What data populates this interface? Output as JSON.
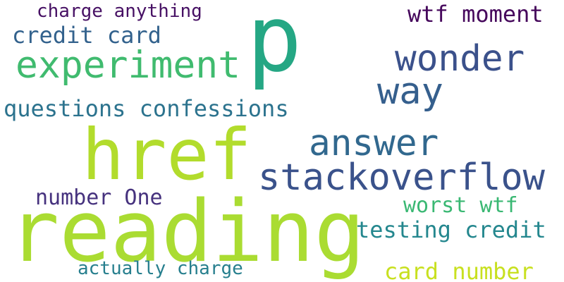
{
  "words": [
    {
      "text": "p",
      "color": "#25a784"
    },
    {
      "text": "href",
      "color": "#b2dc2c"
    },
    {
      "text": "reading",
      "color": "#aadc32"
    },
    {
      "text": "experiment",
      "color": "#40bb6f"
    },
    {
      "text": "stackoverflow",
      "color": "#3a528b"
    },
    {
      "text": "wonder",
      "color": "#3b518b"
    },
    {
      "text": "way",
      "color": "#355f8d"
    },
    {
      "text": "answer",
      "color": "#31688e"
    },
    {
      "text": "questions confessions",
      "color": "#2c738e"
    },
    {
      "text": "credit card",
      "color": "#33628d"
    },
    {
      "text": "charge anything",
      "color": "#471164"
    },
    {
      "text": "wtf moment",
      "color": "#46085c"
    },
    {
      "text": "number One",
      "color": "#46327e"
    },
    {
      "text": "worst wtf",
      "color": "#3ab873"
    },
    {
      "text": "testing credit",
      "color": "#24878e"
    },
    {
      "text": "actually charge",
      "color": "#277f8e"
    },
    {
      "text": "card number",
      "color": "#c8e020"
    }
  ]
}
